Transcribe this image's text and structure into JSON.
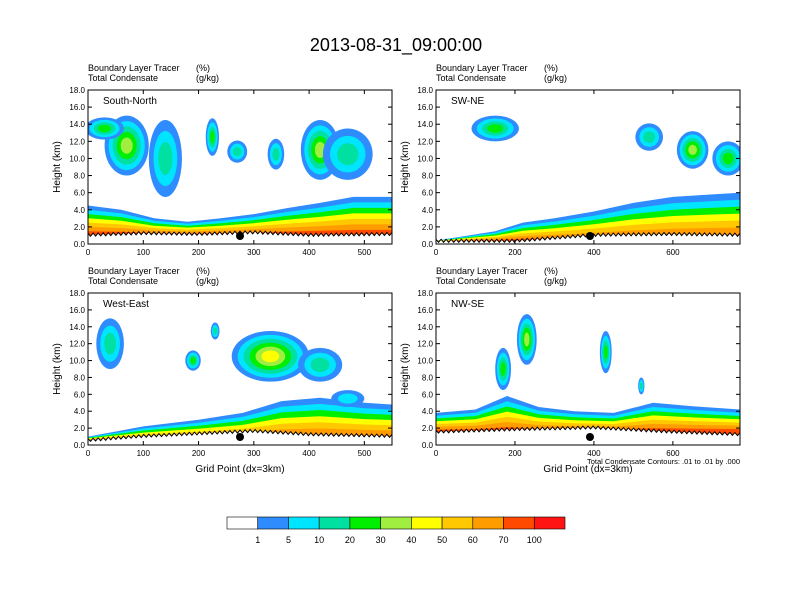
{
  "title": "2013-08-31_09:00:00",
  "chart_data": [
    {
      "type": "heatmap",
      "panel_label": "South-North",
      "subtitle_1": "Boundary Layer Tracer",
      "subtitle_1_unit": "(%)",
      "subtitle_2": "Total Condensate",
      "subtitle_2_unit": "(g/kg)",
      "xlabel": "",
      "ylabel": "Height (km)",
      "xlim": [
        0,
        550
      ],
      "ylim": [
        0,
        18
      ],
      "xticks": [
        0,
        100,
        200,
        300,
        400,
        500
      ],
      "yticks": [
        "0.0",
        "2.0",
        "4.0",
        "6.0",
        "8.0",
        "10.0",
        "12.0",
        "14.0",
        "16.0",
        "18.0"
      ],
      "marker_x": 275,
      "blobs": [
        {
          "x": 70,
          "y": 11.5,
          "rx": 40,
          "ry": 3.5,
          "level": 5
        },
        {
          "x": 30,
          "y": 13.5,
          "rx": 35,
          "ry": 1.3,
          "level": 4
        },
        {
          "x": 140,
          "y": 10,
          "rx": 30,
          "ry": 4.5,
          "level": 3
        },
        {
          "x": 225,
          "y": 12.5,
          "rx": 12,
          "ry": 2.2,
          "level": 4
        },
        {
          "x": 270,
          "y": 10.8,
          "rx": 18,
          "ry": 1.3,
          "level": 3
        },
        {
          "x": 340,
          "y": 10.5,
          "rx": 15,
          "ry": 1.8,
          "level": 3
        },
        {
          "x": 420,
          "y": 11,
          "rx": 35,
          "ry": 3.5,
          "level": 5
        },
        {
          "x": 470,
          "y": 10.5,
          "rx": 45,
          "ry": 3,
          "level": 3
        }
      ],
      "ground": [
        [
          0,
          1.0
        ],
        [
          100,
          1.2
        ],
        [
          200,
          1.1
        ],
        [
          300,
          1.3
        ],
        [
          400,
          1.0
        ],
        [
          550,
          1.1
        ]
      ],
      "bl_top": [
        [
          0,
          4.5
        ],
        [
          60,
          4.0
        ],
        [
          120,
          3.0
        ],
        [
          180,
          2.6
        ],
        [
          240,
          3.0
        ],
        [
          300,
          3.5
        ],
        [
          360,
          4.2
        ],
        [
          420,
          4.8
        ],
        [
          480,
          5.5
        ],
        [
          550,
          5.5
        ]
      ],
      "levels_in_bl": [
        1,
        2,
        4,
        6,
        7,
        8,
        9
      ]
    },
    {
      "type": "heatmap",
      "panel_label": "SW-NE",
      "subtitle_1": "Boundary Layer Tracer",
      "subtitle_1_unit": "(%)",
      "subtitle_2": "Total Condensate",
      "subtitle_2_unit": "(g/kg)",
      "xlabel": "",
      "ylabel": "Height (km)",
      "xlim": [
        0,
        770
      ],
      "ylim": [
        0,
        18
      ],
      "xticks": [
        0,
        200,
        400,
        600
      ],
      "yticks": [
        "0.0",
        "2.0",
        "4.0",
        "6.0",
        "8.0",
        "10.0",
        "12.0",
        "14.0",
        "16.0",
        "18.0"
      ],
      "marker_x": 390,
      "blobs": [
        {
          "x": 150,
          "y": 13.5,
          "rx": 60,
          "ry": 1.5,
          "level": 4
        },
        {
          "x": 540,
          "y": 12.5,
          "rx": 35,
          "ry": 1.6,
          "level": 3
        },
        {
          "x": 650,
          "y": 11,
          "rx": 40,
          "ry": 2.2,
          "level": 5
        },
        {
          "x": 740,
          "y": 10,
          "rx": 40,
          "ry": 2,
          "level": 4
        }
      ],
      "ground": [
        [
          0,
          0.3
        ],
        [
          200,
          0.3
        ],
        [
          400,
          1.0
        ],
        [
          600,
          1.1
        ],
        [
          770,
          1.0
        ]
      ],
      "bl_top": [
        [
          0,
          0.4
        ],
        [
          150,
          1.5
        ],
        [
          220,
          2.5
        ],
        [
          300,
          3.0
        ],
        [
          400,
          3.8
        ],
        [
          500,
          4.8
        ],
        [
          600,
          5.5
        ],
        [
          700,
          5.8
        ],
        [
          770,
          6.0
        ]
      ],
      "levels_in_bl": [
        1,
        2,
        4,
        6,
        7,
        8,
        9
      ]
    },
    {
      "type": "heatmap",
      "panel_label": "West-East",
      "subtitle_1": "Boundary Layer Tracer",
      "subtitle_1_unit": "(%)",
      "subtitle_2": "Total Condensate",
      "subtitle_2_unit": "(g/kg)",
      "xlabel": "Grid Point (dx=3km)",
      "ylabel": "Height (km)",
      "xlim": [
        0,
        550
      ],
      "ylim": [
        0,
        18
      ],
      "xticks": [
        0,
        100,
        200,
        300,
        400,
        500
      ],
      "yticks": [
        "0.0",
        "2.0",
        "4.0",
        "6.0",
        "8.0",
        "10.0",
        "12.0",
        "14.0",
        "16.0",
        "18.0"
      ],
      "marker_x": 275,
      "blobs": [
        {
          "x": 40,
          "y": 12,
          "rx": 25,
          "ry": 3,
          "level": 3
        },
        {
          "x": 230,
          "y": 13.5,
          "rx": 8,
          "ry": 1,
          "level": 3
        },
        {
          "x": 190,
          "y": 10,
          "rx": 14,
          "ry": 1.2,
          "level": 4
        },
        {
          "x": 330,
          "y": 10.5,
          "rx": 70,
          "ry": 3,
          "level": 6
        },
        {
          "x": 420,
          "y": 9.5,
          "rx": 40,
          "ry": 2,
          "level": 3
        },
        {
          "x": 470,
          "y": 5.5,
          "rx": 30,
          "ry": 1,
          "level": 2
        }
      ],
      "ground": [
        [
          0,
          0.5
        ],
        [
          100,
          1.0
        ],
        [
          200,
          1.3
        ],
        [
          300,
          1.6
        ],
        [
          400,
          1.2
        ],
        [
          550,
          1.0
        ]
      ],
      "bl_top": [
        [
          0,
          1.0
        ],
        [
          100,
          2.2
        ],
        [
          200,
          3.0
        ],
        [
          280,
          3.8
        ],
        [
          350,
          5.2
        ],
        [
          420,
          5.6
        ],
        [
          500,
          5.0
        ],
        [
          550,
          4.8
        ]
      ],
      "levels_in_bl": [
        1,
        2,
        4,
        6,
        7,
        8,
        9
      ]
    },
    {
      "type": "heatmap",
      "panel_label": "NW-SE",
      "subtitle_1": "Boundary Layer Tracer",
      "subtitle_1_unit": "(%)",
      "subtitle_2": "Total Condensate",
      "subtitle_2_unit": "(g/kg)",
      "xlabel": "Grid Point (dx=3km)",
      "ylabel": "Height (km)",
      "xlim": [
        0,
        770
      ],
      "ylim": [
        0,
        18
      ],
      "xticks": [
        0,
        200,
        400,
        600
      ],
      "yticks": [
        "0.0",
        "2.0",
        "4.0",
        "6.0",
        "8.0",
        "10.0",
        "12.0",
        "14.0",
        "16.0",
        "18.0"
      ],
      "marker_x": 390,
      "footnote": "Total Condensate Contours: .01 to .01 by .000",
      "blobs": [
        {
          "x": 230,
          "y": 12.5,
          "rx": 25,
          "ry": 3,
          "level": 5
        },
        {
          "x": 170,
          "y": 9,
          "rx": 20,
          "ry": 2.5,
          "level": 4
        },
        {
          "x": 430,
          "y": 11,
          "rx": 15,
          "ry": 2.5,
          "level": 4
        },
        {
          "x": 520,
          "y": 7,
          "rx": 8,
          "ry": 1,
          "level": 3
        }
      ],
      "ground": [
        [
          0,
          1.5
        ],
        [
          200,
          1.8
        ],
        [
          400,
          2.0
        ],
        [
          600,
          1.5
        ],
        [
          770,
          1.2
        ]
      ],
      "bl_top": [
        [
          0,
          3.8
        ],
        [
          100,
          4.2
        ],
        [
          180,
          5.8
        ],
        [
          260,
          4.5
        ],
        [
          350,
          4.0
        ],
        [
          450,
          3.8
        ],
        [
          550,
          5.0
        ],
        [
          650,
          4.6
        ],
        [
          770,
          4.2
        ]
      ],
      "levels_in_bl": [
        1,
        2,
        4,
        6,
        7,
        8,
        9
      ]
    }
  ],
  "colorbar": {
    "labels": [
      "1",
      "5",
      "10",
      "20",
      "30",
      "40",
      "50",
      "60",
      "70",
      "100"
    ],
    "colors": [
      "#ffffff",
      "#2f8cff",
      "#00e5ff",
      "#00e0a0",
      "#00ee00",
      "#a0ee40",
      "#ffff00",
      "#ffc800",
      "#ff9c00",
      "#ff4a00",
      "#ff1414"
    ]
  }
}
